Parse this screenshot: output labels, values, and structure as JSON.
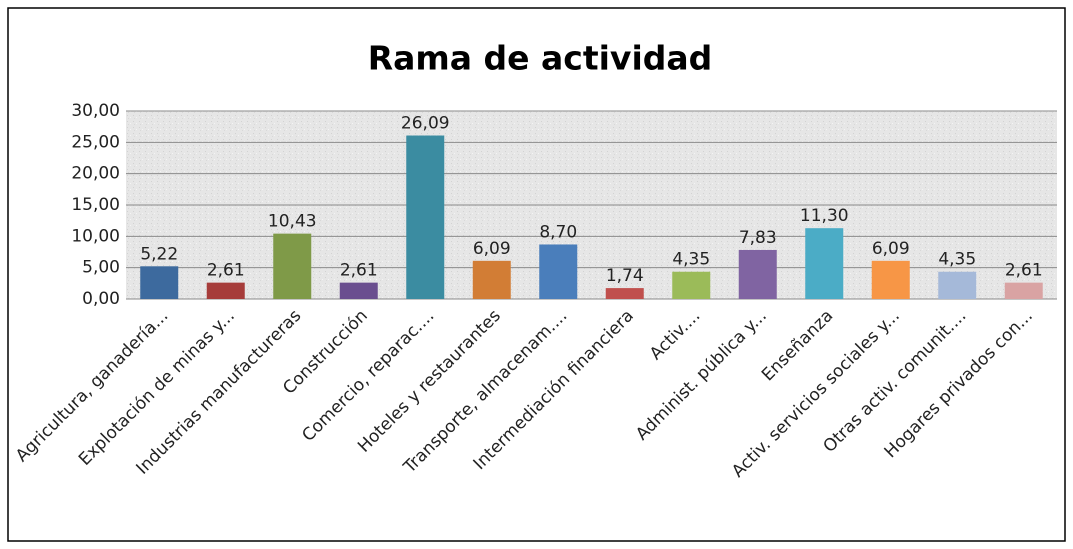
{
  "chart_data": {
    "type": "bar",
    "title": "Rama de actividad",
    "categories": [
      "Agricultura, ganadería...",
      "Explotación de minas y...",
      "Industrias manufactureras",
      "Construcción",
      "Comercio, reparac....",
      "Hoteles y restaurantes",
      "Transporte, almacenam....",
      "Intermediación financiera",
      "Activ....",
      "Administ. pública y...",
      "Enseñanza",
      "Activ. servicios sociales y...",
      "Otras activ. comunit....",
      "Hogares privados con..."
    ],
    "values": [
      5.22,
      2.61,
      10.43,
      2.61,
      26.09,
      6.09,
      8.7,
      1.74,
      4.35,
      7.83,
      11.3,
      6.09,
      4.35,
      2.61
    ],
    "value_labels": [
      "5,22",
      "2,61",
      "10,43",
      "2,61",
      "26,09",
      "6,09",
      "8,70",
      "1,74",
      "4,35",
      "7,83",
      "11,30",
      "6,09",
      "4,35",
      "2,61"
    ],
    "colors": [
      "#3d6a9e",
      "#a63c3a",
      "#7f9a48",
      "#6a4e8f",
      "#3b8ca1",
      "#d27d35",
      "#4a7ebb",
      "#c0504d",
      "#9bbb59",
      "#8064a2",
      "#4bacc6",
      "#f79646",
      "#a5b9d9",
      "#d9a3a3"
    ],
    "ylim": [
      0,
      30
    ],
    "yticks": [
      {
        "value": 0,
        "label": "0,00"
      },
      {
        "value": 5,
        "label": "5,00"
      },
      {
        "value": 10,
        "label": "10,00"
      },
      {
        "value": 15,
        "label": "15,00"
      },
      {
        "value": 20,
        "label": "20,00"
      },
      {
        "value": 25,
        "label": "25,00"
      },
      {
        "value": 30,
        "label": "30,00"
      }
    ],
    "grid": true
  }
}
